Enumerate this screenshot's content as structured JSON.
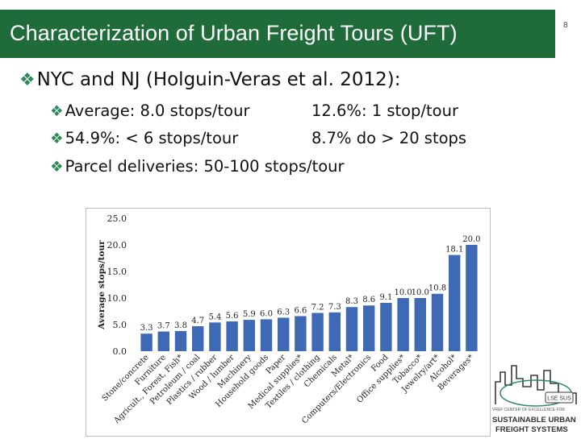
{
  "slide": {
    "title": "Characterization of Urban Freight Tours (UFT)",
    "page_number": "8",
    "bullet_main": "NYC and NJ (Holguin-Veras et al. 2012):",
    "bullets": [
      {
        "left": "Average: 8.0 stops/tour",
        "right": "12.6%: 1 stop/tour"
      },
      {
        "left": "54.9%: < 6 stops/tour",
        "right": "8.7% do > 20 stops"
      },
      {
        "left": "Parcel deliveries: 50-100 stops/tour",
        "right": ""
      }
    ],
    "bullet_icon": "diamond-bullet-icon",
    "colors": {
      "title_bar": "#1f6b3a",
      "bullet": "#2e8b57",
      "bar": "#3d69b5"
    }
  },
  "logo": {
    "badge": "LSE SUS",
    "line1": "VREF CENTER OF EXCELLENCE FOR",
    "line2": "SUSTAINABLE URBAN",
    "line3": "FREIGHT SYSTEMS"
  },
  "chart_data": {
    "type": "bar",
    "title": "",
    "xlabel": "",
    "ylabel": "Average stops/tour",
    "ylim": [
      0,
      25
    ],
    "yticks": [
      "0.0",
      "5.0",
      "10.0",
      "15.0",
      "20.0",
      "25.0"
    ],
    "grid": false,
    "legend": "none",
    "categories": [
      "Stone/concrete",
      "Furniture",
      "Agricult., Forest, Fish*",
      "Petroleum / coal",
      "Plastics / rubber",
      "Wood / lumber",
      "Machinery",
      "Household goods",
      "Paper",
      "Medical supplies*",
      "Textiles / clothing",
      "Chemicals",
      "Metal*",
      "Computers/Electronics",
      "Food",
      "Office supplies*",
      "Tobacco*",
      "Jewelry/art*",
      "Alcohol*",
      "Beverages*"
    ],
    "values": [
      3.3,
      3.7,
      3.8,
      4.7,
      5.4,
      5.6,
      5.9,
      6.0,
      6.3,
      6.6,
      7.2,
      7.3,
      8.3,
      8.6,
      9.1,
      10.0,
      10.0,
      10.8,
      18.1,
      20.0
    ],
    "data_labels": [
      "3.3",
      "3.7",
      "3.8",
      "4.7",
      "5.4",
      "5.6",
      "5.9",
      "6.0",
      "6.3",
      "6.6",
      "7.2",
      "7.3",
      "8.3",
      "8.6",
      "9.1",
      "10.0",
      "10.0",
      "10.8",
      "18.1",
      "20.0"
    ]
  }
}
